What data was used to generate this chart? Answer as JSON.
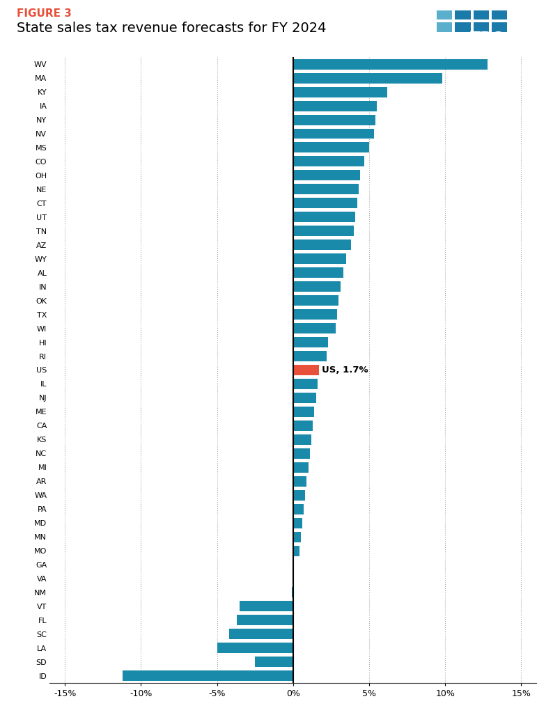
{
  "title_fig": "FIGURE 3",
  "title_main": "State sales tax revenue forecasts for FY 2024",
  "title_fig_color": "#e8503a",
  "bar_color": "#1a8aab",
  "us_bar_color": "#e8503a",
  "annotation": "US, 1.7%",
  "states": [
    "WV",
    "MA",
    "KY",
    "IA",
    "NY",
    "NV",
    "MS",
    "CO",
    "OH",
    "NE",
    "CT",
    "UT",
    "TN",
    "AZ",
    "WY",
    "AL",
    "IN",
    "OK",
    "TX",
    "WI",
    "HI",
    "RI",
    "US",
    "IL",
    "NJ",
    "ME",
    "CA",
    "KS",
    "NC",
    "MI",
    "AR",
    "WA",
    "PA",
    "MD",
    "MN",
    "MO",
    "GA",
    "VA",
    "NM",
    "VT",
    "FL",
    "SC",
    "LA",
    "SD",
    "ID"
  ],
  "values": [
    12.8,
    9.8,
    6.2,
    5.5,
    5.4,
    5.3,
    5.0,
    4.7,
    4.4,
    4.3,
    4.2,
    4.1,
    4.0,
    3.8,
    3.5,
    3.3,
    3.1,
    3.0,
    2.9,
    2.8,
    2.3,
    2.2,
    1.7,
    1.6,
    1.5,
    1.4,
    1.3,
    1.2,
    1.1,
    1.0,
    0.9,
    0.8,
    0.7,
    0.6,
    0.5,
    0.4,
    0.05,
    0.0,
    -0.1,
    -3.5,
    -3.7,
    -4.2,
    -5.0,
    -2.5,
    -11.2
  ],
  "xlim": [
    -16,
    16
  ],
  "xticks": [
    -15,
    -10,
    -5,
    0,
    5,
    10,
    15
  ],
  "xticklabels": [
    "-15%",
    "-10%",
    "-5%",
    "0%",
    "5%",
    "10%",
    "15%"
  ],
  "background_color": "#ffffff",
  "grid_color": "#aaaaaa",
  "logo_bg_color": "#1b3f6b",
  "logo_tile_dark": "#1a7aaa",
  "logo_tile_light": "#5ab0cc"
}
